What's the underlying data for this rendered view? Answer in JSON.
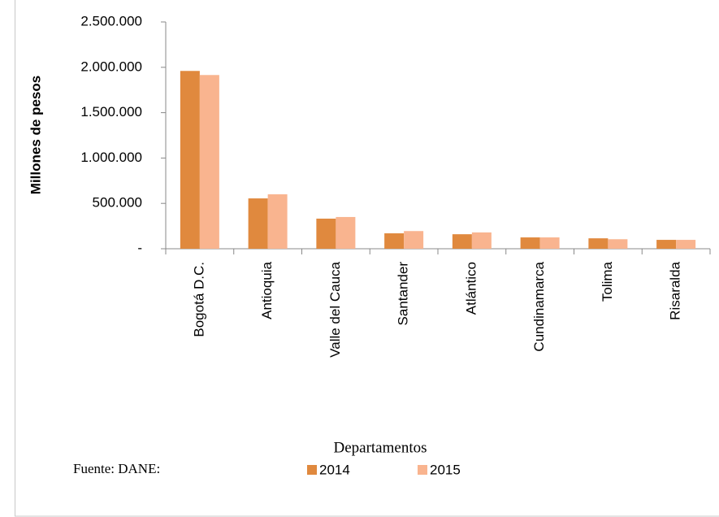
{
  "chart_data": {
    "type": "bar",
    "categories": [
      "Bogotá D.C.",
      "Antioquia",
      "Valle del Cauca",
      "Santander",
      "Atlántico",
      "Cundinamarca",
      "Tolima",
      "Risaralda"
    ],
    "series": [
      {
        "name": "2014",
        "color": "#e0893e",
        "values": [
          1960000,
          555000,
          332000,
          170000,
          160000,
          125000,
          115000,
          98000
        ]
      },
      {
        "name": "2015",
        "color": "#f9b48f",
        "values": [
          1915000,
          600000,
          350000,
          195000,
          180000,
          125000,
          105000,
          98000
        ]
      }
    ],
    "ylabel": "Millones de pesos",
    "xlabel": "Departamentos",
    "source": "Fuente: DANE:",
    "ylim": [
      0,
      2500000
    ],
    "yticks": [
      {
        "value": 0,
        "label": "-"
      },
      {
        "value": 500000,
        "label": "500.000"
      },
      {
        "value": 1000000,
        "label": "1.000.000"
      },
      {
        "value": 1500000,
        "label": "1.500.000"
      },
      {
        "value": 2000000,
        "label": "2.000.000"
      },
      {
        "value": 2500000,
        "label": "2.500.000"
      }
    ],
    "grid": false,
    "legend": "bottom"
  }
}
